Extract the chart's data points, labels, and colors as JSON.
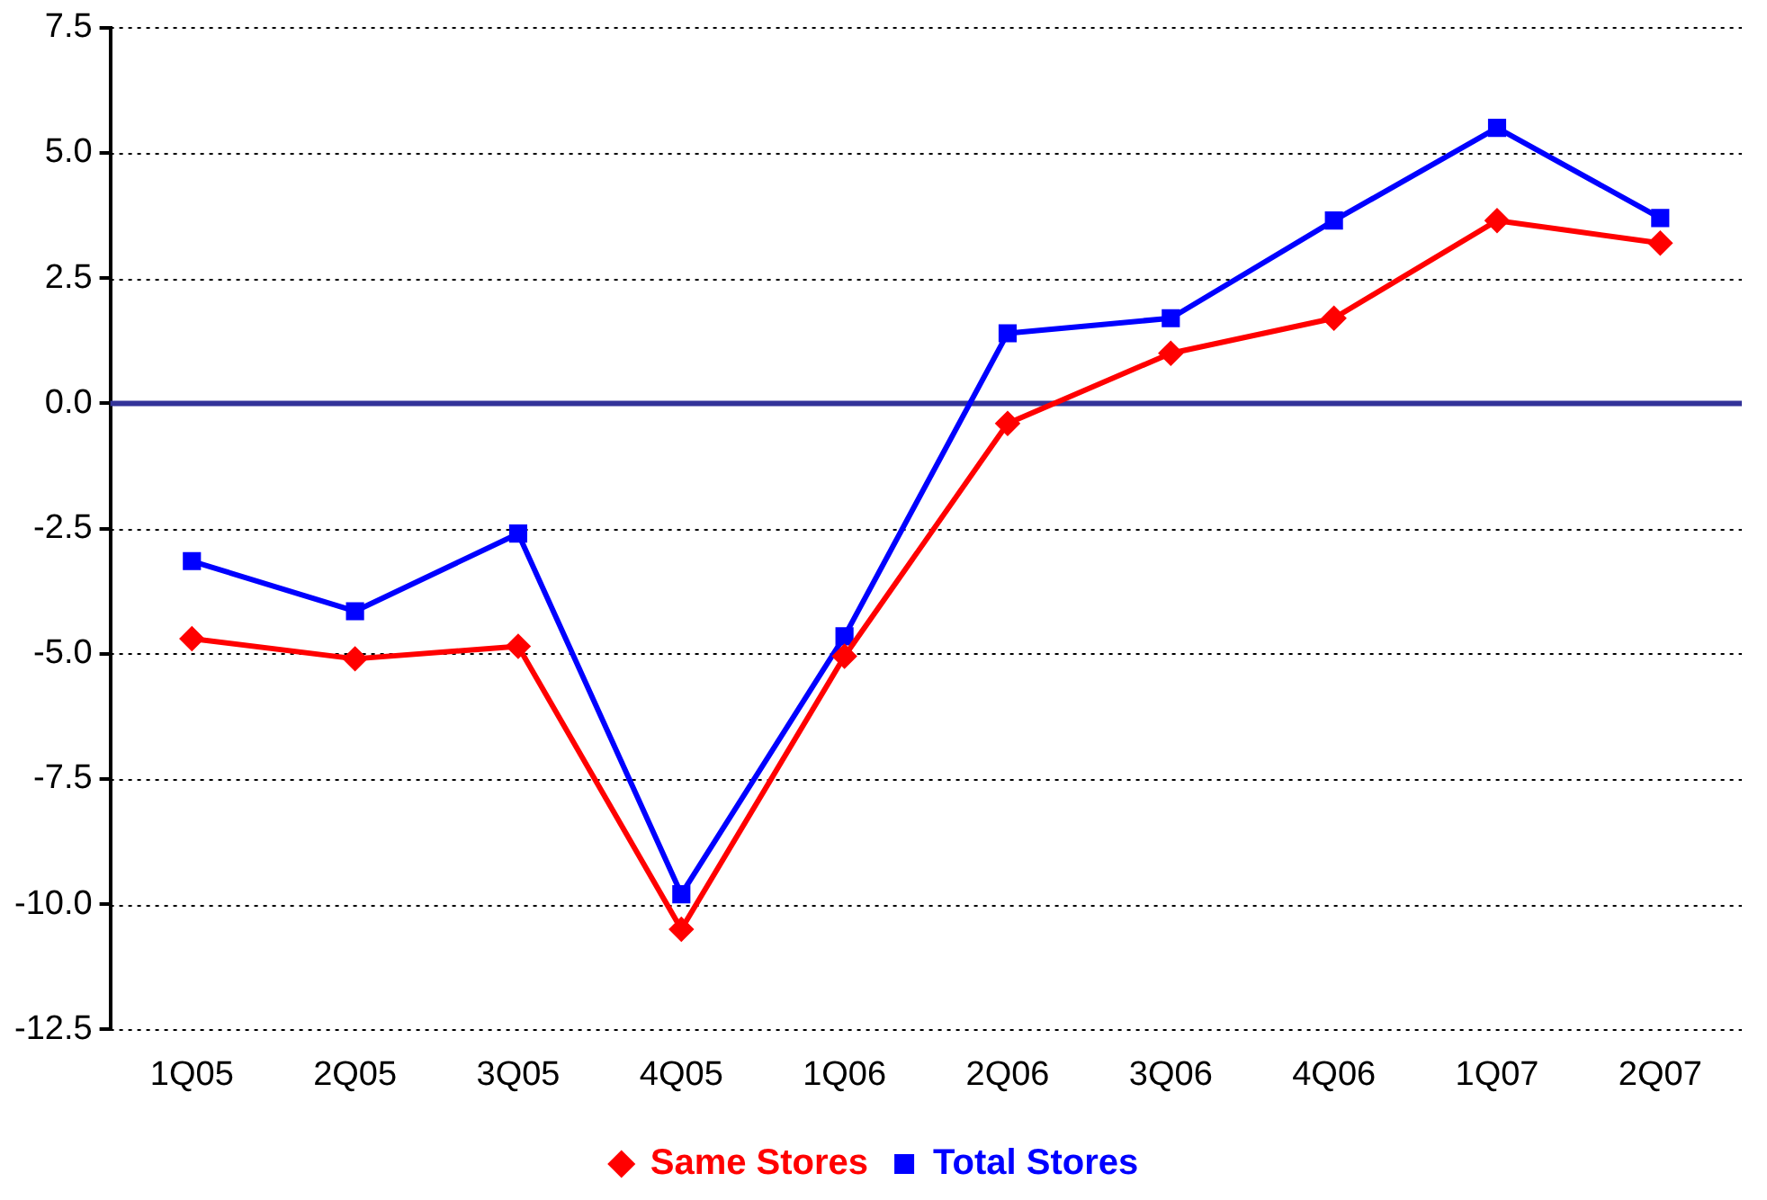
{
  "chart_data": {
    "type": "line",
    "categories": [
      "1Q05",
      "2Q05",
      "3Q05",
      "4Q05",
      "1Q06",
      "2Q06",
      "3Q06",
      "4Q06",
      "1Q07",
      "2Q07"
    ],
    "series": [
      {
        "name": "Same Stores",
        "color": "#ff0000",
        "marker": "diamond",
        "values": [
          -4.7,
          -5.1,
          -4.85,
          -10.5,
          -5.05,
          -0.4,
          1.0,
          1.7,
          3.65,
          3.2
        ]
      },
      {
        "name": "Total Stores",
        "color": "#0000ff",
        "marker": "square",
        "values": [
          -3.15,
          -4.15,
          -2.6,
          -9.8,
          -4.65,
          1.4,
          1.7,
          3.65,
          5.5,
          3.7
        ]
      }
    ],
    "ylim": [
      -12.5,
      7.5
    ],
    "yticks": [
      {
        "value": -12.5,
        "label": "-12.5"
      },
      {
        "value": -10,
        "label": "-10.0"
      },
      {
        "value": -7.5,
        "label": "-7.5"
      },
      {
        "value": -5,
        "label": "-5.0"
      },
      {
        "value": -2.5,
        "label": "-2.5"
      },
      {
        "value": 0,
        "label": "0.0"
      },
      {
        "value": 2.5,
        "label": "2.5"
      },
      {
        "value": 5,
        "label": "5.0"
      },
      {
        "value": 7.5,
        "label": "7.5"
      }
    ],
    "ref_lines": [
      {
        "axis": "y",
        "value": 0,
        "color": "#333399"
      }
    ],
    "grid": "y",
    "legend": "bottom",
    "line_style": "solid"
  }
}
